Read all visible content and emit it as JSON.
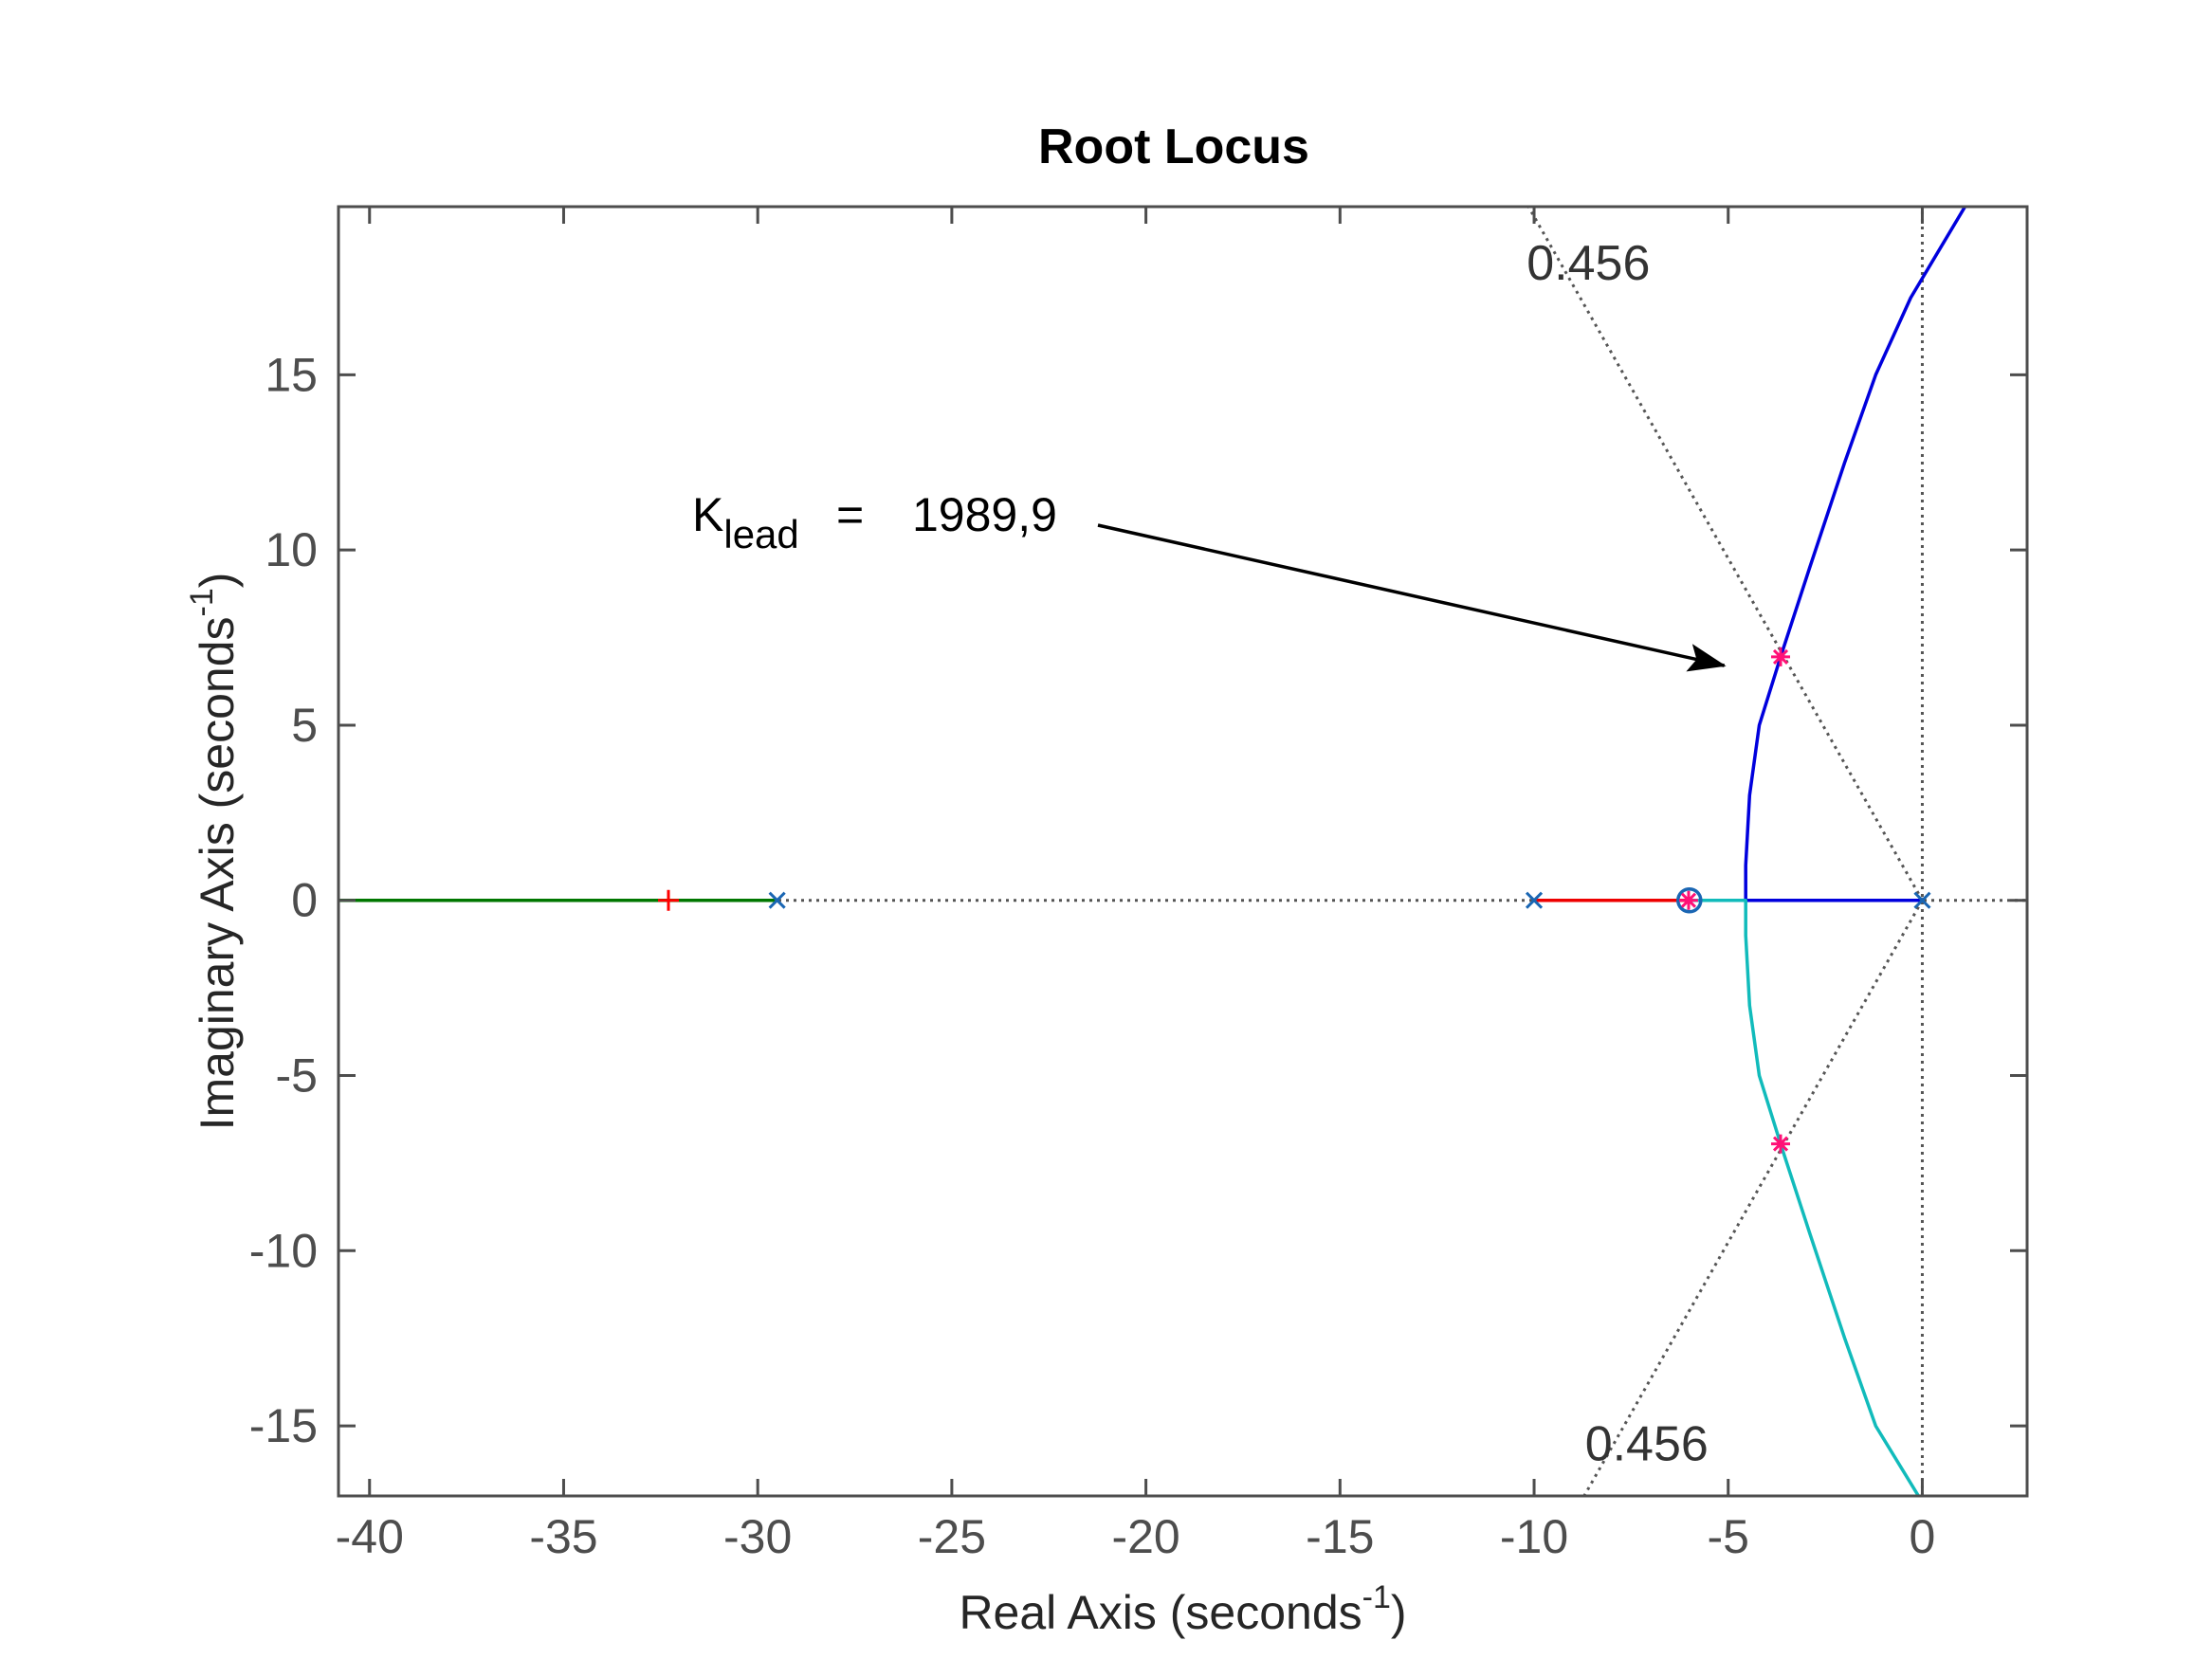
{
  "chart_data": {
    "type": "line",
    "title": "Root Locus",
    "xlabel": {
      "text": "Real Axis (seconds",
      "sup": "-1",
      "close": ")"
    },
    "ylabel": {
      "text": "Imaginary Axis (seconds",
      "sup": "-1",
      "close": ")"
    },
    "xlim": [
      -40.8,
      2.7
    ],
    "ylim": [
      -17,
      19.8
    ],
    "xticks": [
      -40,
      -35,
      -30,
      -25,
      -20,
      -15,
      -10,
      -5,
      0
    ],
    "yticks": [
      -15,
      -10,
      -5,
      0,
      5,
      10,
      15
    ],
    "grid": false,
    "damping_ratio": 0.456,
    "damping_labels": [
      {
        "text": "0.456",
        "x": -8.6,
        "y": 18.2
      },
      {
        "text": "0.456",
        "x": -7.1,
        "y": -15.5
      }
    ],
    "poles": [
      {
        "re": 0,
        "im": 0
      },
      {
        "re": -10,
        "im": 0
      },
      {
        "re": -29.5,
        "im": 0
      }
    ],
    "zeros": [
      {
        "re": -6,
        "im": 0
      }
    ],
    "closed_loop_poles": [
      {
        "re": -3.65,
        "im": 6.95
      },
      {
        "re": -3.65,
        "im": -6.95
      },
      {
        "re": -6.02,
        "im": 0
      },
      {
        "re": -32.3,
        "im": 0
      }
    ],
    "series": [
      {
        "color": "#0000dd",
        "points": [
          [
            0,
            0
          ],
          [
            -4.55,
            0
          ],
          [
            -4.55,
            1.0
          ],
          [
            -4.45,
            3.0
          ],
          [
            -4.2,
            5.0
          ],
          [
            -3.65,
            6.95
          ],
          [
            -2.9,
            9.5
          ],
          [
            -2.0,
            12.5
          ],
          [
            -1.2,
            15.0
          ],
          [
            -0.3,
            17.2
          ],
          [
            1.1,
            19.8
          ]
        ]
      },
      {
        "color": "#11bbbb",
        "points": [
          [
            -6,
            0
          ],
          [
            -4.55,
            0
          ],
          [
            -4.55,
            -1.0
          ],
          [
            -4.45,
            -3.0
          ],
          [
            -4.2,
            -5.0
          ],
          [
            -3.65,
            -6.95
          ],
          [
            -2.9,
            -9.5
          ],
          [
            -2.0,
            -12.5
          ],
          [
            -1.2,
            -15.0
          ],
          [
            -0.1,
            -17.0
          ]
        ]
      },
      {
        "color": "#ee0000",
        "points": [
          [
            -10,
            0
          ],
          [
            -6,
            0
          ]
        ]
      },
      {
        "color": "#007700",
        "points": [
          [
            -29.5,
            0
          ],
          [
            -40.8,
            0
          ]
        ]
      }
    ],
    "annotation": {
      "k_main": "K",
      "k_sub": "lead",
      "equals": "=",
      "value": "1989,9",
      "arrow_target": {
        "re": -5.1,
        "im": 6.7
      }
    }
  },
  "colors": {
    "axis": "#4d4d4d",
    "grid_lines": "#555555",
    "pole_marker": "#1a66b3",
    "cl_pole_marker": "#ff1177",
    "far_pole_marker": "#ff0000"
  }
}
